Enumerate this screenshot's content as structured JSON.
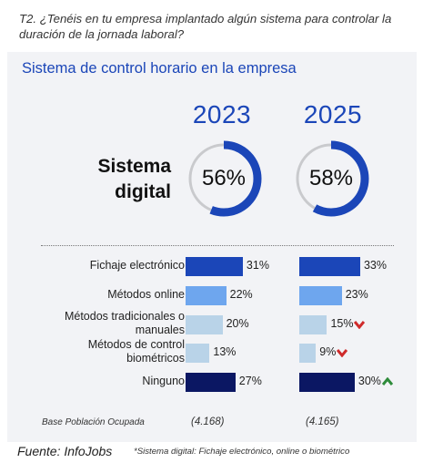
{
  "question": "T2. ¿Tenéis en tu empresa implantado algún sistema para controlar la duración de la jornada laboral?",
  "chart_data": [
    {
      "type": "donut",
      "title": "Sistema de control horario en la empresa",
      "label": "Sistema digital",
      "series": [
        {
          "name": "2023",
          "value": 56,
          "display": "56%"
        },
        {
          "name": "2025",
          "value": 58,
          "display": "58%"
        }
      ],
      "colors": {
        "filled": "#1b46b8",
        "remainder": "#c9cacd"
      }
    },
    {
      "type": "bar",
      "orientation": "horizontal",
      "categories": [
        "Fichaje electrónico",
        "Métodos online",
        "Métodos tradicionales o manuales",
        "Métodos de control biométricos",
        "Ninguno"
      ],
      "category_lines": [
        [
          "Fichaje electrónico"
        ],
        [
          "Métodos online"
        ],
        [
          "Métodos tradicionales o",
          "manuales"
        ],
        [
          "Métodos de control",
          "biométricos"
        ],
        [
          "Ninguno"
        ]
      ],
      "series": [
        {
          "name": "2023",
          "values": [
            31,
            22,
            20,
            13,
            27
          ],
          "labels": [
            "31%",
            "22%",
            "20%",
            "13%",
            "27%"
          ]
        },
        {
          "name": "2025",
          "values": [
            33,
            23,
            15,
            9,
            30
          ],
          "labels": [
            "33%",
            "23%",
            "15%",
            "9%",
            "30%"
          ]
        }
      ],
      "trend_2025": [
        "",
        "",
        "down",
        "down",
        "up"
      ],
      "bar_colors": [
        "#1b46b8",
        "#6ea6ee",
        "#b9d3e8",
        "#b9d3e8",
        "#0b1763"
      ],
      "trend_colors": {
        "down": "#cf2b2b",
        "up": "#2e8b3a"
      }
    }
  ],
  "base": {
    "label": "Base Población Ocupada",
    "values": [
      "(4.168)",
      "(4.165)"
    ]
  },
  "source": "Fuente: InfoJobs",
  "footnote": "*Sistema digital: Fichaje electrónico, online o biométrico"
}
